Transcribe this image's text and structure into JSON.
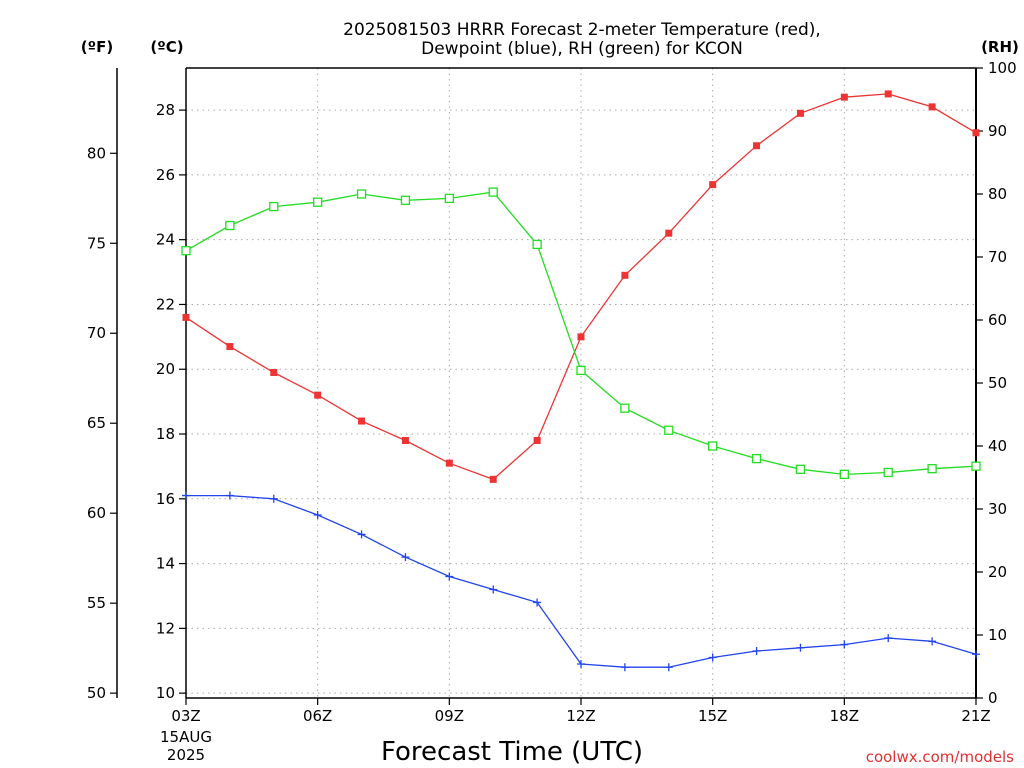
{
  "chart_data": {
    "type": "line",
    "title_line1": "2025081503 HRRR Forecast 2-meter Temperature (red),",
    "title_line2": "Dewpoint (blue), RH (green) for KCON",
    "xlabel": "Forecast Time (UTC)",
    "left_outer_unit": "(ºF)",
    "left_inner_unit": "(ºC)",
    "right_unit": "(RH)",
    "x_hours": [
      3,
      4,
      5,
      6,
      7,
      8,
      9,
      10,
      11,
      12,
      13,
      14,
      15,
      16,
      17,
      18,
      19,
      20,
      21
    ],
    "x_tick_hours": [
      3,
      6,
      9,
      12,
      15,
      18,
      21
    ],
    "x_tick_labels": [
      "03Z",
      "06Z",
      "09Z",
      "12Z",
      "15Z",
      "18Z",
      "21Z"
    ],
    "x_date_label": "15AUG",
    "x_year_label": "2025",
    "xlim": [
      3,
      21
    ],
    "c_ylim": [
      9.85,
      29.3
    ],
    "c_ticks": [
      10,
      12,
      14,
      16,
      18,
      20,
      22,
      24,
      26,
      28
    ],
    "f_ticks": [
      50,
      55,
      60,
      65,
      70,
      75,
      80
    ],
    "rh_ylim": [
      0,
      100
    ],
    "rh_ticks": [
      0,
      10,
      20,
      30,
      40,
      50,
      60,
      70,
      80,
      90,
      100
    ],
    "grid": true,
    "watermark": "coolwx.com/models",
    "series": [
      {
        "key": "temperature",
        "axis": "C",
        "color": "#ee3333",
        "marker": "filled-square",
        "values": [
          21.6,
          20.7,
          19.9,
          19.2,
          18.4,
          17.8,
          17.1,
          16.6,
          17.8,
          21.0,
          22.9,
          24.2,
          25.7,
          26.9,
          27.9,
          28.4,
          28.5,
          28.1,
          27.3
        ]
      },
      {
        "key": "dewpoint",
        "axis": "C",
        "color": "#2244ee",
        "marker": "plus",
        "values": [
          16.1,
          16.1,
          16.0,
          15.5,
          14.9,
          14.2,
          13.6,
          13.2,
          12.8,
          10.9,
          10.8,
          10.8,
          11.1,
          11.3,
          11.4,
          11.5,
          11.7,
          11.6,
          11.2
        ]
      },
      {
        "key": "rh",
        "axis": "RH",
        "color": "#22dd22",
        "marker": "open-square",
        "values": [
          71,
          75,
          78,
          78.7,
          80,
          79,
          79.3,
          80.3,
          72,
          52,
          46,
          42.5,
          40,
          38,
          36.3,
          35.5,
          35.8,
          36.4,
          36.8
        ]
      }
    ]
  }
}
